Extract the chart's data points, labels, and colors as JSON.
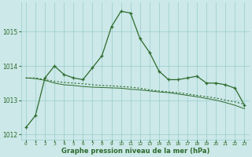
{
  "line1_x": [
    0,
    1,
    2,
    3,
    4,
    5,
    6,
    7,
    8,
    9,
    10,
    11,
    12,
    13,
    14,
    15,
    16,
    17,
    18,
    19,
    20,
    21,
    22,
    23
  ],
  "line1_y": [
    1012.2,
    1012.55,
    1013.65,
    1014.0,
    1013.75,
    1013.65,
    1013.6,
    1013.95,
    1014.3,
    1015.15,
    1015.6,
    1015.55,
    1014.8,
    1014.4,
    1013.85,
    1013.6,
    1013.6,
    1013.65,
    1013.7,
    1013.5,
    1013.5,
    1013.45,
    1013.35,
    1012.85
  ],
  "line2_x": [
    0,
    1,
    2,
    3,
    4,
    5,
    6,
    7,
    8,
    9,
    10,
    11,
    12,
    13,
    14,
    15,
    16,
    17,
    18,
    19,
    20,
    21,
    22,
    23
  ],
  "line2_y": [
    1013.65,
    1013.65,
    1013.6,
    1013.55,
    1013.52,
    1013.5,
    1013.48,
    1013.45,
    1013.43,
    1013.42,
    1013.4,
    1013.38,
    1013.35,
    1013.3,
    1013.27,
    1013.24,
    1013.22,
    1013.18,
    1013.14,
    1013.1,
    1013.06,
    1013.0,
    1012.95,
    1012.88
  ],
  "line3_x": [
    0,
    1,
    2,
    3,
    4,
    5,
    6,
    7,
    8,
    9,
    10,
    11,
    12,
    13,
    14,
    15,
    16,
    17,
    18,
    19,
    20,
    21,
    22,
    23
  ],
  "line3_y": [
    1013.65,
    1013.63,
    1013.58,
    1013.5,
    1013.45,
    1013.43,
    1013.4,
    1013.38,
    1013.37,
    1013.36,
    1013.35,
    1013.32,
    1013.3,
    1013.27,
    1013.24,
    1013.22,
    1013.18,
    1013.14,
    1013.1,
    1013.05,
    1013.0,
    1012.93,
    1012.85,
    1012.75
  ],
  "bg_color": "#cce8e8",
  "grid_color": "#99cccc",
  "line_color": "#2d6b2d",
  "xlabel": "Graphe pression niveau de la mer (hPa)",
  "ylim": [
    1011.85,
    1015.85
  ],
  "yticks": [
    1012,
    1013,
    1014,
    1015
  ],
  "xticks": [
    0,
    1,
    2,
    3,
    4,
    5,
    6,
    7,
    8,
    9,
    10,
    11,
    12,
    13,
    14,
    15,
    16,
    17,
    18,
    19,
    20,
    21,
    22,
    23
  ]
}
